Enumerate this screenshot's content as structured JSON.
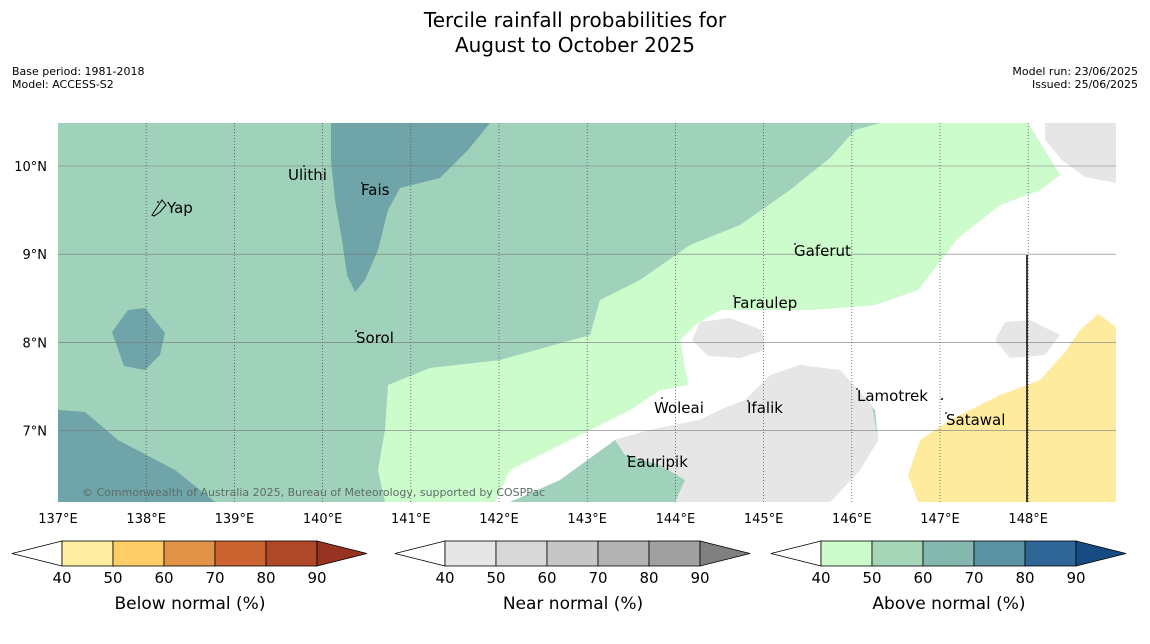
{
  "title": {
    "line1": "Tercile rainfall probabilities for",
    "line2": "August to October 2025"
  },
  "meta": {
    "base_period": "Base period: 1981-2018",
    "model": "Model: ACCESS-S2",
    "model_run": "Model run: 23/06/2025",
    "issued": "Issued: 25/06/2025"
  },
  "map": {
    "lon_labels": [
      "137°E",
      "138°E",
      "139°E",
      "140°E",
      "141°E",
      "142°E",
      "143°E",
      "144°E",
      "145°E",
      "146°E",
      "147°E",
      "148°E"
    ],
    "lat_labels": [
      "10°N",
      "9°N",
      "8°N",
      "7°N"
    ],
    "places": [
      {
        "name": "Ulithi"
      },
      {
        "name": "Fais"
      },
      {
        "name": "Yap"
      },
      {
        "name": "Gaferut"
      },
      {
        "name": "Faraulep"
      },
      {
        "name": "Sorol"
      },
      {
        "name": "Lamotrek"
      },
      {
        "name": "Woleai"
      },
      {
        "name": "Ifalik"
      },
      {
        "name": "Satawal"
      },
      {
        "name": "Eauripik"
      }
    ],
    "copyright": "© Commonwealth of Australia 2025, Bureau of Meteorology, supported by COSPPac",
    "colors": {
      "above_50": "#a0d2bb",
      "above_60": "#6fa4a8",
      "above_40": "#ccfccc",
      "near_40": "#e6e6e6",
      "below_40": "#feeb9e"
    }
  },
  "legends": [
    {
      "title": "Below normal (%)",
      "ticks": [
        "40",
        "50",
        "60",
        "70",
        "80",
        "90"
      ],
      "colors": [
        "#ffffff",
        "#ffee9f",
        "#ffcd66",
        "#e19447",
        "#cc6432",
        "#af4827",
        "#993321"
      ]
    },
    {
      "title": "Near normal (%)",
      "ticks": [
        "40",
        "50",
        "60",
        "70",
        "80",
        "90"
      ],
      "colors": [
        "#ffffff",
        "#e6e6e6",
        "#d8d8d8",
        "#c6c6c6",
        "#b3b3b3",
        "#a0a0a0",
        "#808080"
      ]
    },
    {
      "title": "Above normal (%)",
      "ticks": [
        "40",
        "50",
        "60",
        "70",
        "80",
        "90"
      ],
      "colors": [
        "#ffffff",
        "#ccfccc",
        "#a5d6b8",
        "#84b7ae",
        "#5c93a3",
        "#2e6797",
        "#164c82"
      ]
    }
  ]
}
